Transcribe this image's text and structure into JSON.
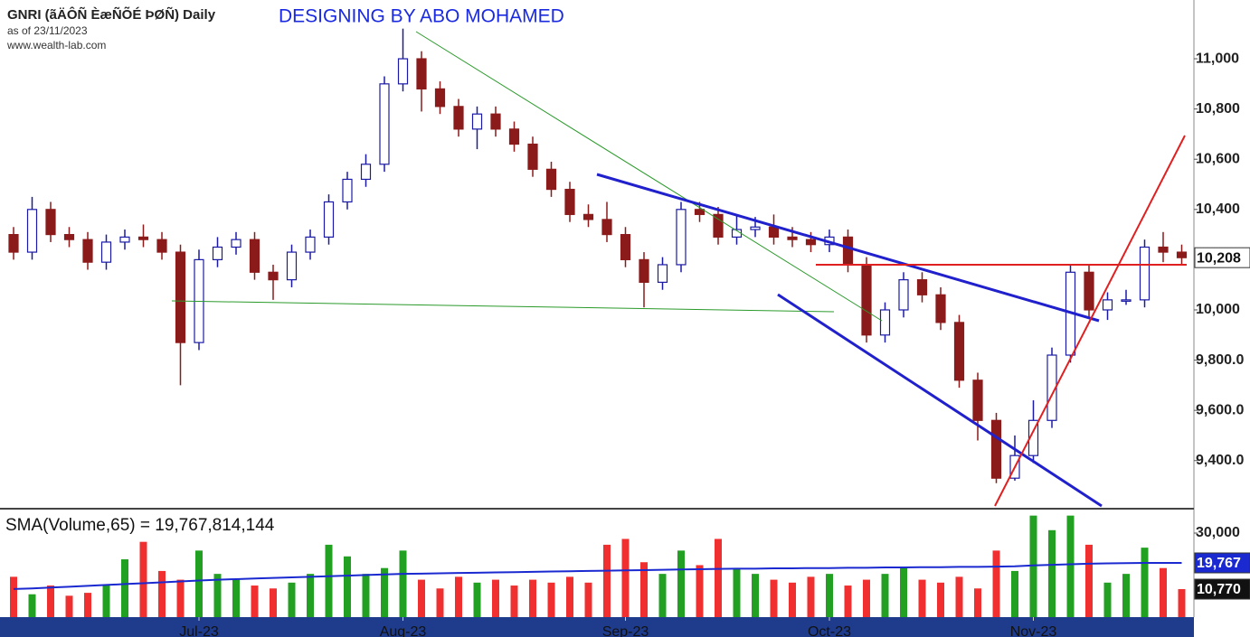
{
  "chart_data": {
    "type": "candlestick",
    "title": "GNRI (ãÄÔÑ ÈæÑÕÉ ÞØÑ) Daily",
    "subtitle": "as of 23/11/2023",
    "source": "www.wealth-lab.com",
    "annotation": "DESIGNING BY ABO MOHAMED",
    "volume_title": "SMA(Volume,65) = 19,767,814,144",
    "categories": [
      null,
      null,
      null,
      null,
      null,
      null,
      null,
      null,
      null,
      null,
      "Jul-23",
      null,
      null,
      null,
      null,
      null,
      null,
      null,
      null,
      null,
      null,
      "Aug-23",
      null,
      null,
      null,
      null,
      null,
      null,
      null,
      null,
      null,
      null,
      null,
      "Sep-23",
      null,
      null,
      null,
      null,
      null,
      null,
      null,
      null,
      null,
      null,
      "Oct-23",
      null,
      null,
      null,
      null,
      null,
      null,
      null,
      null,
      null,
      null,
      "Nov-23",
      null,
      null,
      null,
      null,
      null,
      null,
      null,
      null
    ],
    "open": [
      10300,
      10230,
      10400,
      10300,
      10280,
      10190,
      10270,
      10290,
      10280,
      10230,
      9870,
      10200,
      10250,
      10280,
      10150,
      10120,
      10230,
      10290,
      10430,
      10520,
      10580,
      10900,
      11000,
      10880,
      10810,
      10720,
      10780,
      10720,
      10660,
      10560,
      10480,
      10380,
      10360,
      10300,
      10200,
      10110,
      10180,
      10400,
      10380,
      10290,
      10320,
      10330,
      10290,
      10280,
      10260,
      10290,
      10180,
      9900,
      10000,
      10120,
      10060,
      9950,
      9720,
      9560,
      9330,
      9420,
      9560,
      9820,
      10150,
      10000,
      10040,
      10040,
      10250,
      10230
    ],
    "high": [
      10330,
      10450,
      10430,
      10330,
      10310,
      10300,
      10320,
      10340,
      10310,
      10260,
      10240,
      10290,
      10310,
      10310,
      10180,
      10260,
      10320,
      10460,
      10550,
      10620,
      10930,
      11120,
      11030,
      10910,
      10840,
      10810,
      10810,
      10750,
      10690,
      10590,
      10510,
      10420,
      10430,
      10330,
      10230,
      10210,
      10430,
      10430,
      10410,
      10380,
      10370,
      10380,
      10330,
      10310,
      10320,
      10320,
      10210,
      10030,
      10150,
      10150,
      10090,
      9980,
      9750,
      9590,
      9500,
      9640,
      9850,
      10180,
      10180,
      10070,
      10080,
      10280,
      10310,
      10260
    ],
    "low": [
      10200,
      10200,
      10270,
      10250,
      10160,
      10160,
      10240,
      10250,
      10200,
      9700,
      9840,
      10170,
      10220,
      10120,
      10040,
      10090,
      10200,
      10260,
      10400,
      10490,
      10550,
      10870,
      10790,
      10780,
      10690,
      10640,
      10690,
      10630,
      10530,
      10450,
      10350,
      10330,
      10270,
      10170,
      10010,
      10080,
      10150,
      10350,
      10260,
      10260,
      10290,
      10260,
      10250,
      10230,
      10230,
      10150,
      9870,
      9870,
      9970,
      10030,
      9920,
      9690,
      9480,
      9310,
      9320,
      9390,
      9530,
      9790,
      9970,
      9960,
      10020,
      10010,
      10190,
      10180
    ],
    "close": [
      10230,
      10400,
      10300,
      10280,
      10190,
      10270,
      10290,
      10280,
      10230,
      9870,
      10200,
      10250,
      10280,
      10150,
      10120,
      10230,
      10290,
      10430,
      10520,
      10580,
      10900,
      11000,
      10880,
      10810,
      10720,
      10780,
      10720,
      10660,
      10560,
      10480,
      10380,
      10360,
      10300,
      10200,
      10110,
      10180,
      10400,
      10380,
      10290,
      10320,
      10330,
      10290,
      10280,
      10260,
      10290,
      10180,
      9900,
      10000,
      10120,
      10060,
      9950,
      9720,
      9560,
      9330,
      9420,
      9560,
      9820,
      10150,
      10000,
      10040,
      10040,
      10250,
      10230,
      10208
    ],
    "up_color": "#1a1aa6",
    "down_color": "#8b1a1a",
    "ylim": [
      9212,
      11234
    ],
    "yticks": [
      {
        "value": 9400,
        "label": "9,400.0"
      },
      {
        "value": 9600,
        "label": "9,600.0"
      },
      {
        "value": 9800,
        "label": "9,800.0"
      },
      {
        "value": 10000,
        "label": "10,000"
      },
      {
        "value": 10400,
        "label": "10,400"
      },
      {
        "value": 10600,
        "label": "10,600"
      },
      {
        "value": 10800,
        "label": "10,800"
      },
      {
        "value": 11000,
        "label": "11,000"
      }
    ],
    "last_price": {
      "value": 10208,
      "label": "10,208"
    },
    "volume": [
      15000,
      9000,
      12000,
      8500,
      9500,
      12000,
      21000,
      27000,
      17000,
      14000,
      24000,
      16000,
      14000,
      12000,
      11000,
      13000,
      16000,
      26000,
      22000,
      16000,
      18000,
      24000,
      14000,
      11000,
      15000,
      13000,
      14000,
      12000,
      14000,
      13000,
      15000,
      13000,
      26000,
      28000,
      20000,
      16000,
      24000,
      19000,
      28000,
      18000,
      16000,
      14000,
      13000,
      15000,
      16000,
      12000,
      14000,
      16000,
      18000,
      14000,
      13000,
      15000,
      11000,
      24000,
      17000,
      36000,
      31000,
      36000,
      26000,
      13000,
      16000,
      25000,
      18000,
      10770
    ],
    "volume_up_color": "#22a022",
    "volume_down_color": "#f03030",
    "volume_sma": [
      10800,
      11000,
      11300,
      11600,
      11900,
      12200,
      12500,
      12800,
      13100,
      13400,
      13700,
      14000,
      14200,
      14400,
      14600,
      14800,
      15000,
      15200,
      15400,
      15600,
      15800,
      16000,
      16100,
      16200,
      16300,
      16400,
      16500,
      16600,
      16700,
      16800,
      16900,
      17000,
      17100,
      17200,
      17300,
      17400,
      17500,
      17600,
      17700,
      17800,
      17800,
      17900,
      17900,
      18000,
      18000,
      18100,
      18100,
      18200,
      18200,
      18300,
      18300,
      18400,
      18400,
      18500,
      18600,
      18900,
      19100,
      19300,
      19500,
      19600,
      19700,
      19750,
      19770,
      19767
    ],
    "volume_sma_color": "#1a2ad0",
    "vlim": [
      1160,
      37750
    ],
    "vticks": [
      {
        "value": 30000,
        "label": "30,000"
      }
    ],
    "last_sma": {
      "value": 19767,
      "label": "19,767"
    },
    "last_volume": {
      "value": 10770,
      "label": "10,770"
    }
  }
}
